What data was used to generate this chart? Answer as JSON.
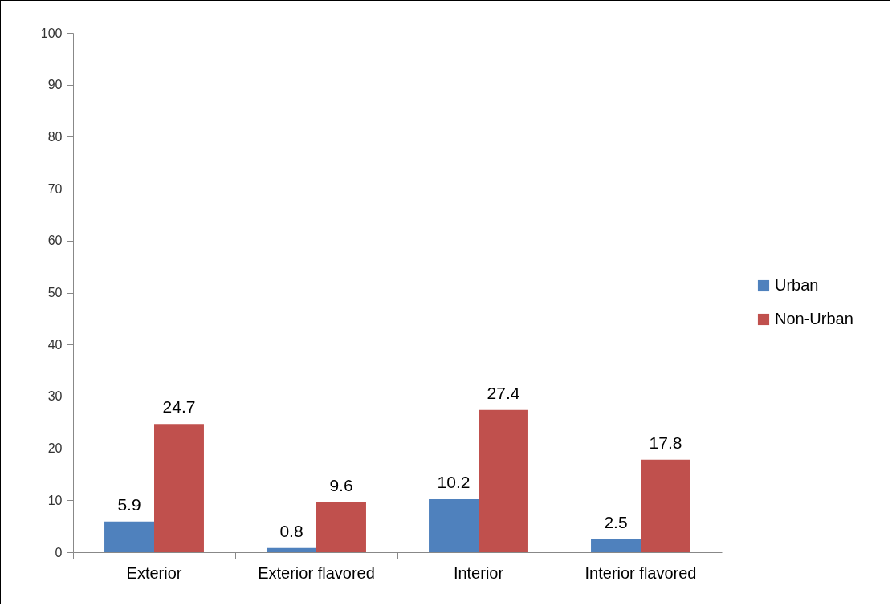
{
  "chart_data": {
    "type": "bar",
    "categories": [
      "Exterior",
      "Exterior flavored",
      "Interior",
      "Interior flavored"
    ],
    "series": [
      {
        "name": "Urban",
        "color": "#4f81bd",
        "values": [
          5.9,
          0.8,
          10.2,
          2.5
        ]
      },
      {
        "name": "Non-Urban",
        "color": "#c0504d",
        "values": [
          24.7,
          9.6,
          27.4,
          17.8
        ]
      }
    ],
    "ylim": [
      0,
      100
    ],
    "yticks": [
      0,
      10,
      20,
      30,
      40,
      50,
      60,
      70,
      80,
      90,
      100
    ],
    "data_labels": true,
    "legend": "right",
    "grid": false
  }
}
